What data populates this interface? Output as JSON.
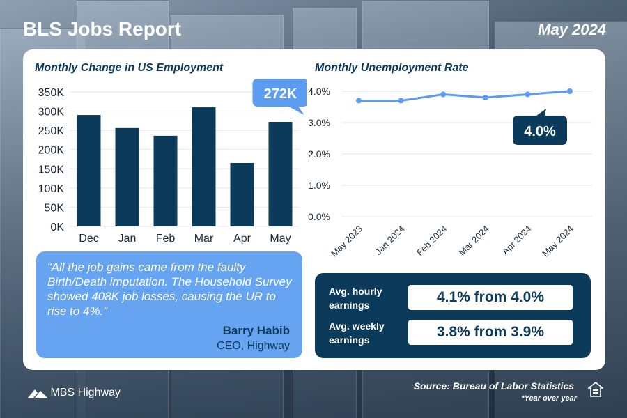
{
  "header": {
    "title": "BLS Jobs Report",
    "date": "May 2024"
  },
  "charts": {
    "employment_title": "Monthly Change in US Employment",
    "unemployment_title": "Monthly Unemployment Rate",
    "employment_callout": "272K",
    "unemployment_callout": "4.0%"
  },
  "chart_data": [
    {
      "type": "bar",
      "title": "Monthly Change in US Employment",
      "categories": [
        "Dec",
        "Jan",
        "Feb",
        "Mar",
        "Apr",
        "May"
      ],
      "values": [
        290000,
        256000,
        236000,
        310000,
        165000,
        272000
      ],
      "ylim": [
        0,
        350000
      ],
      "yticks": [
        "0K",
        "50K",
        "100K",
        "150K",
        "200K",
        "250K",
        "300K",
        "350K"
      ],
      "grid": true,
      "colors": {
        "bar": "#0c3a5a"
      }
    },
    {
      "type": "line",
      "title": "Monthly Unemployment Rate",
      "categories": [
        "May 2023",
        "Jan 2024",
        "Feb 2024",
        "Mar 2024",
        "Apr 2024",
        "May 2024"
      ],
      "values": [
        3.7,
        3.7,
        3.9,
        3.8,
        3.9,
        4.0
      ],
      "ylim": [
        0,
        4.0
      ],
      "yticks": [
        "0.0%",
        "1.0%",
        "2.0%",
        "3.0%",
        "4.0%"
      ],
      "grid": true,
      "colors": {
        "line": "#5b9bf0"
      }
    }
  ],
  "quote": {
    "text": "“All the job gains came from the faulty Birth/Death imputation. The Household Survey showed 408K job losses, causing the UR to rise to 4%.”",
    "author": "Barry Habib",
    "role": "CEO, Highway"
  },
  "earnings": {
    "hourly_label": "Avg. hourly earnings",
    "hourly_value": "4.1% from 4.0%",
    "weekly_label": "Avg. weekly earnings",
    "weekly_value": "3.8% from 3.9%"
  },
  "footer": {
    "source": "Source: Bureau of Labor Statistics",
    "note": "*Year over year",
    "logo": "MBS Highway"
  }
}
